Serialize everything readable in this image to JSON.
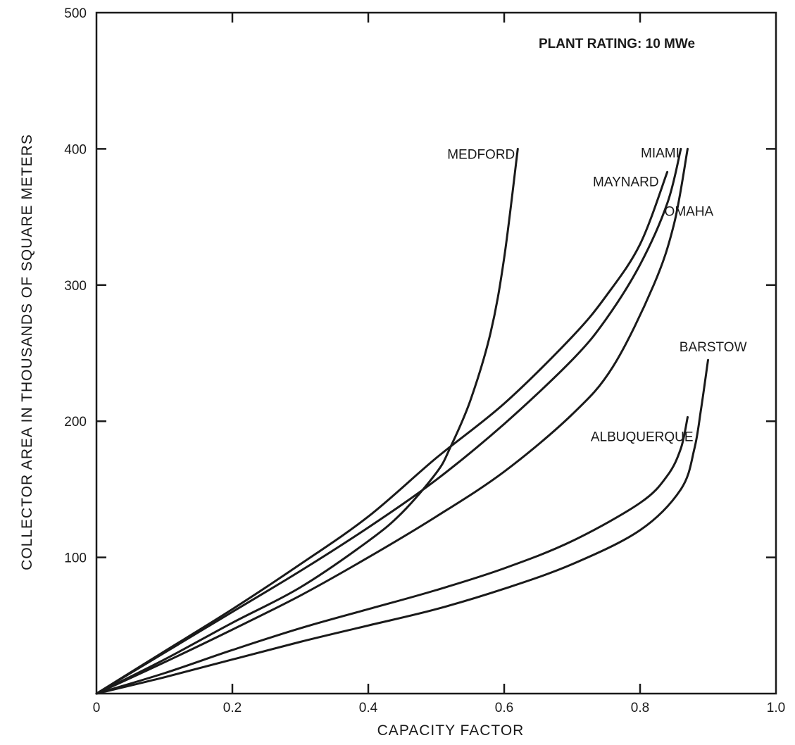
{
  "chart_data": {
    "type": "line",
    "title": "",
    "annotation": "PLANT RATING:  10 MWe",
    "xlabel": "CAPACITY FACTOR",
    "ylabel": "COLLECTOR AREA IN THOUSANDS OF SQUARE METERS",
    "xlim": [
      0,
      1.0
    ],
    "ylim": [
      0,
      500
    ],
    "x_ticks": [
      0,
      0.2,
      0.4,
      0.6,
      0.8,
      1.0
    ],
    "x_tick_labels": [
      "0",
      "0.2",
      "0.4",
      "0.6",
      "0.8",
      "1.0"
    ],
    "y_ticks": [
      100,
      200,
      300,
      400,
      500
    ],
    "y_tick_labels": [
      "100",
      "200",
      "300",
      "400",
      "500"
    ],
    "grid": false,
    "series": [
      {
        "name": "MEDFORD",
        "points": [
          [
            0,
            0
          ],
          [
            0.1,
            25
          ],
          [
            0.2,
            52
          ],
          [
            0.3,
            78
          ],
          [
            0.4,
            112
          ],
          [
            0.45,
            133
          ],
          [
            0.5,
            162
          ],
          [
            0.52,
            180
          ],
          [
            0.55,
            215
          ],
          [
            0.58,
            265
          ],
          [
            0.6,
            320
          ],
          [
            0.62,
            400
          ]
        ]
      },
      {
        "name": "MIAMI",
        "points": [
          [
            0,
            0
          ],
          [
            0.1,
            30
          ],
          [
            0.2,
            60
          ],
          [
            0.3,
            90
          ],
          [
            0.4,
            122
          ],
          [
            0.5,
            157
          ],
          [
            0.6,
            198
          ],
          [
            0.7,
            245
          ],
          [
            0.75,
            275
          ],
          [
            0.8,
            315
          ],
          [
            0.84,
            360
          ],
          [
            0.86,
            400
          ]
        ]
      },
      {
        "name": "MAYNARD",
        "points": [
          [
            0,
            0
          ],
          [
            0.1,
            31
          ],
          [
            0.2,
            62
          ],
          [
            0.3,
            95
          ],
          [
            0.4,
            130
          ],
          [
            0.5,
            173
          ],
          [
            0.6,
            213
          ],
          [
            0.7,
            262
          ],
          [
            0.75,
            292
          ],
          [
            0.8,
            330
          ],
          [
            0.84,
            383
          ]
        ]
      },
      {
        "name": "OMAHA",
        "points": [
          [
            0,
            0
          ],
          [
            0.1,
            23
          ],
          [
            0.2,
            47
          ],
          [
            0.3,
            72
          ],
          [
            0.4,
            100
          ],
          [
            0.5,
            130
          ],
          [
            0.6,
            163
          ],
          [
            0.7,
            205
          ],
          [
            0.76,
            240
          ],
          [
            0.82,
            300
          ],
          [
            0.85,
            345
          ],
          [
            0.87,
            400
          ]
        ]
      },
      {
        "name": "ALBUQUERQUE",
        "points": [
          [
            0,
            0
          ],
          [
            0.1,
            15
          ],
          [
            0.2,
            32
          ],
          [
            0.3,
            48
          ],
          [
            0.4,
            62
          ],
          [
            0.5,
            76
          ],
          [
            0.6,
            92
          ],
          [
            0.7,
            112
          ],
          [
            0.8,
            140
          ],
          [
            0.84,
            160
          ],
          [
            0.86,
            180
          ],
          [
            0.87,
            203
          ]
        ]
      },
      {
        "name": "BARSTOW",
        "points": [
          [
            0,
            0
          ],
          [
            0.1,
            12
          ],
          [
            0.2,
            25
          ],
          [
            0.3,
            38
          ],
          [
            0.4,
            50
          ],
          [
            0.5,
            62
          ],
          [
            0.6,
            77
          ],
          [
            0.7,
            95
          ],
          [
            0.8,
            120
          ],
          [
            0.86,
            150
          ],
          [
            0.88,
            180
          ],
          [
            0.89,
            210
          ],
          [
            0.9,
            245
          ]
        ]
      }
    ]
  }
}
